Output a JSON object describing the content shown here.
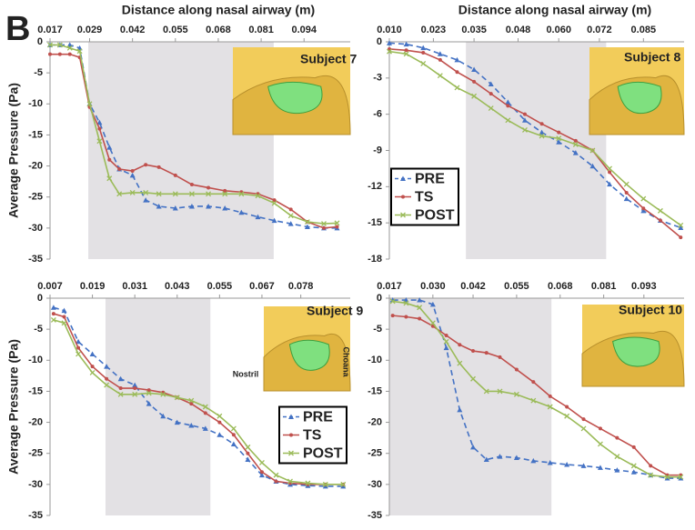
{
  "panel_label": "B",
  "chart_data": [
    {
      "type": "line",
      "xlabel": "Distance along nasal airway (m)",
      "ylabel": "Average Pressure (Pa)",
      "inset_label": "Subject 7",
      "x": [
        0.017,
        0.02,
        0.023,
        0.026,
        0.029,
        0.032,
        0.035,
        0.038,
        0.042,
        0.046,
        0.05,
        0.055,
        0.06,
        0.065,
        0.07,
        0.075,
        0.08,
        0.085,
        0.09,
        0.095,
        0.1,
        0.104
      ],
      "xlim": [
        0.017,
        0.108
      ],
      "xticks": [
        0.017,
        0.029,
        0.042,
        0.055,
        0.068,
        0.081,
        0.094
      ],
      "ylim": [
        -35,
        0
      ],
      "yticks": [
        0,
        -5,
        -10,
        -15,
        -20,
        -25,
        -30,
        -35
      ],
      "shaded_region": [
        0.0286,
        0.0848
      ],
      "series": [
        {
          "color": "#4472c4",
          "marker": "triangle",
          "dashed": true,
          "values": [
            -0.5,
            -0.5,
            -0.5,
            -1,
            -10,
            -13,
            -17,
            -20.5,
            -21.5,
            -25.5,
            -26.5,
            -26.8,
            -26.5,
            -26.5,
            -26.8,
            -27.5,
            -28.2,
            -28.8,
            -29.3,
            -29.8,
            -30,
            -30
          ]
        },
        {
          "color": "#c0504d",
          "marker": "circle",
          "dashed": false,
          "values": [
            -2,
            -2,
            -2,
            -2.5,
            -10.5,
            -14,
            -19,
            -20.5,
            -20.8,
            -19.8,
            -20.2,
            -21.5,
            -23,
            -23.5,
            -24,
            -24.2,
            -24.5,
            -25.5,
            -27,
            -29,
            -30,
            -29.8
          ]
        },
        {
          "color": "#9bbb59",
          "marker": "cross",
          "dashed": false,
          "values": [
            -0.5,
            -0.5,
            -1,
            -1.5,
            -10,
            -16,
            -22,
            -24.5,
            -24.3,
            -24.3,
            -24.5,
            -24.5,
            -24.5,
            -24.5,
            -24.5,
            -24.5,
            -24.8,
            -26,
            -28,
            -29,
            -29.3,
            -29.2
          ]
        }
      ]
    },
    {
      "type": "line",
      "xlabel": "Distance along nasal airway (m)",
      "inset_label": "Subject 8",
      "legend": "middle-left",
      "x": [
        0.01,
        0.015,
        0.02,
        0.025,
        0.03,
        0.035,
        0.04,
        0.045,
        0.05,
        0.055,
        0.06,
        0.065,
        0.07,
        0.075,
        0.08,
        0.085,
        0.09,
        0.096
      ],
      "xlim": [
        0.01,
        0.097
      ],
      "xticks": [
        {
          "value": 0.01,
          "label": "0.010"
        },
        0.023,
        0.035,
        0.048,
        {
          "value": 0.06,
          "label": "0.060"
        },
        0.072,
        0.085
      ],
      "ylim": [
        -18,
        0
      ],
      "yticks": [
        0,
        -3,
        -6,
        -9,
        -12,
        -15,
        -18
      ],
      "shaded_region": [
        0.0326,
        0.074
      ],
      "series": [
        {
          "name": "PRE",
          "color": "#4472c4",
          "marker": "triangle",
          "dashed": true,
          "values": [
            -0.1,
            -0.2,
            -0.5,
            -1.0,
            -1.5,
            -2.3,
            -3.5,
            -5.0,
            -6.5,
            -7.5,
            -8.3,
            -9.2,
            -10.3,
            -11.8,
            -13.0,
            -14.0,
            -14.8,
            -15.4
          ]
        },
        {
          "name": "TS",
          "color": "#c0504d",
          "marker": "circle",
          "dashed": false,
          "values": [
            -0.6,
            -0.7,
            -0.9,
            -1.5,
            -2.5,
            -3.3,
            -4.3,
            -5.3,
            -6.0,
            -6.8,
            -7.5,
            -8.2,
            -9.0,
            -10.8,
            -12.5,
            -13.8,
            -14.8,
            -16.2
          ]
        },
        {
          "name": "POST",
          "color": "#9bbb59",
          "marker": "cross",
          "dashed": false,
          "values": [
            -0.8,
            -1.0,
            -1.8,
            -2.8,
            -3.8,
            -4.5,
            -5.5,
            -6.5,
            -7.3,
            -7.8,
            -8.0,
            -8.5,
            -9.0,
            -10.5,
            -11.8,
            -13.0,
            -14.0,
            -15.2
          ]
        }
      ]
    },
    {
      "type": "line",
      "ylabel": "Average Pressure (Pa)",
      "inset_label": "Subject 9",
      "inset_notes": [
        "Nostril",
        "Choana"
      ],
      "legend": "middle-right",
      "x": [
        0.008,
        0.011,
        0.015,
        0.019,
        0.023,
        0.027,
        0.031,
        0.035,
        0.039,
        0.043,
        0.047,
        0.051,
        0.055,
        0.059,
        0.063,
        0.067,
        0.071,
        0.075,
        0.08,
        0.085,
        0.09
      ],
      "xlim": [
        0.007,
        0.092
      ],
      "xticks": [
        0.007,
        0.019,
        0.031,
        0.043,
        0.055,
        0.067,
        0.078
      ],
      "ylim": [
        -35,
        0
      ],
      "yticks": [
        0,
        -5,
        -10,
        -15,
        -20,
        -25,
        -30,
        -35
      ],
      "shaded_region": [
        0.0227,
        0.0524
      ],
      "series": [
        {
          "name": "PRE",
          "color": "#4472c4",
          "marker": "triangle",
          "dashed": true,
          "values": [
            -1.5,
            -2,
            -7,
            -9,
            -11,
            -13,
            -14,
            -17,
            -19,
            -20,
            -20.5,
            -21,
            -22,
            -23.5,
            -26,
            -28.5,
            -29.5,
            -30,
            -30.2,
            -30.3,
            -30.3
          ]
        },
        {
          "name": "TS",
          "color": "#c0504d",
          "marker": "circle",
          "dashed": false,
          "values": [
            -2.5,
            -3,
            -8,
            -11,
            -13,
            -14.5,
            -14.5,
            -14.8,
            -15.2,
            -16,
            -17,
            -18.5,
            -20,
            -22,
            -25,
            -28,
            -29.5,
            -29.8,
            -30,
            -30,
            -30
          ]
        },
        {
          "name": "POST",
          "color": "#9bbb59",
          "marker": "cross",
          "dashed": false,
          "values": [
            -3.5,
            -4,
            -9,
            -12,
            -14,
            -15.5,
            -15.5,
            -15.3,
            -15.5,
            -16,
            -16.5,
            -17.5,
            -19,
            -21,
            -24,
            -26.5,
            -28.5,
            -29.5,
            -29.8,
            -30,
            -30
          ]
        }
      ]
    },
    {
      "type": "line",
      "inset_label": "Subject 10",
      "x": [
        0.018,
        0.022,
        0.026,
        0.03,
        0.034,
        0.038,
        0.042,
        0.046,
        0.05,
        0.055,
        0.06,
        0.065,
        0.07,
        0.075,
        0.08,
        0.085,
        0.09,
        0.095,
        0.1,
        0.104
      ],
      "xlim": [
        0.017,
        0.105
      ],
      "xticks": [
        0.017,
        {
          "value": 0.03,
          "label": "0.030"
        },
        0.042,
        0.055,
        0.068,
        0.081,
        0.093
      ],
      "ylim": [
        -35,
        0
      ],
      "yticks": [
        0,
        -5,
        -10,
        -15,
        -20,
        -25,
        -30,
        -35
      ],
      "shaded_region": [
        0.017,
        0.0654
      ],
      "series": [
        {
          "color": "#4472c4",
          "marker": "triangle",
          "dashed": true,
          "values": [
            -0.3,
            -0.3,
            -0.3,
            -1,
            -8,
            -18,
            -24,
            -26,
            -25.5,
            -25.7,
            -26.2,
            -26.5,
            -26.8,
            -27,
            -27.3,
            -27.7,
            -28,
            -28.5,
            -29,
            -29
          ]
        },
        {
          "color": "#c0504d",
          "marker": "circle",
          "dashed": false,
          "values": [
            -2.8,
            -3,
            -3.3,
            -4.5,
            -6,
            -7.5,
            -8.5,
            -8.8,
            -9.5,
            -11.5,
            -13.5,
            -15.8,
            -17.5,
            -19.5,
            -21,
            -22.5,
            -24,
            -27,
            -28.5,
            -28.5
          ]
        },
        {
          "color": "#9bbb59",
          "marker": "cross",
          "dashed": false,
          "values": [
            -0.5,
            -0.8,
            -1.5,
            -4,
            -7,
            -10.5,
            -13,
            -15,
            -15,
            -15.5,
            -16.5,
            -17.5,
            -19,
            -21,
            -23.5,
            -25.5,
            -27,
            -28.5,
            -28.8,
            -28.8
          ]
        }
      ]
    }
  ]
}
